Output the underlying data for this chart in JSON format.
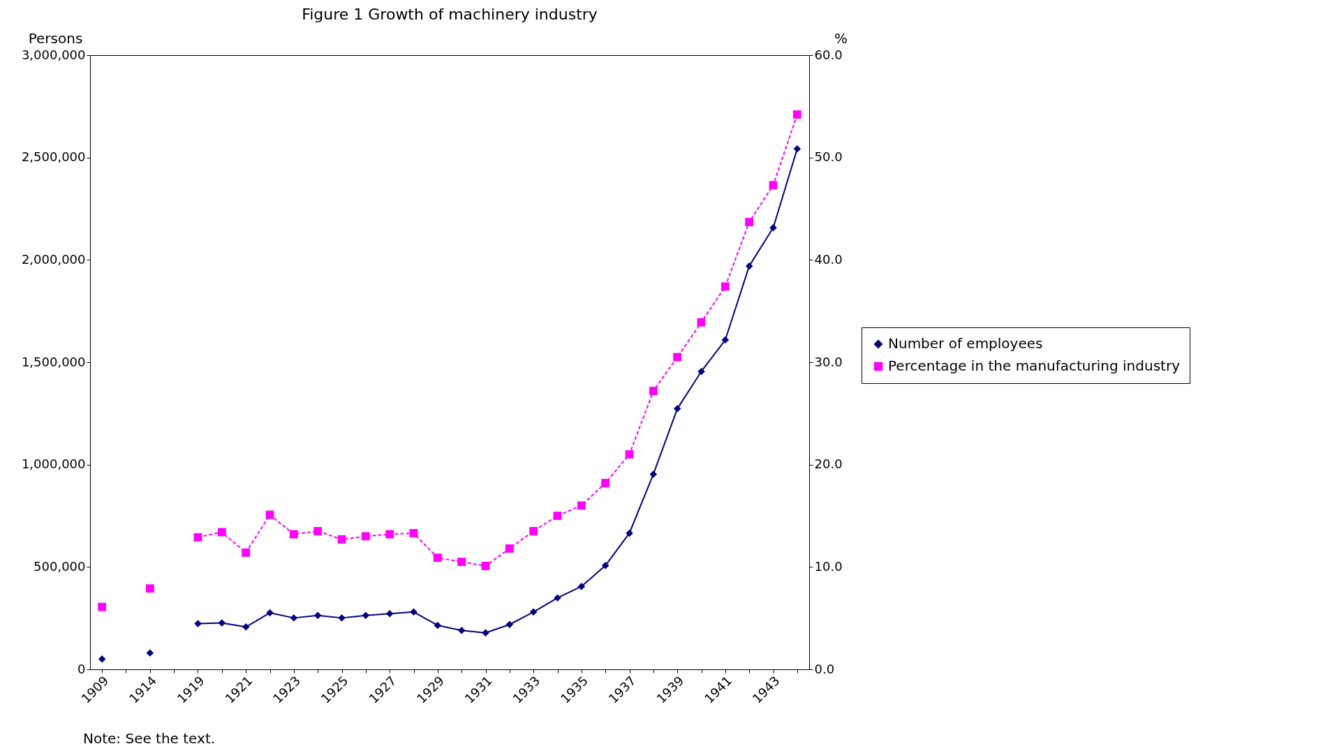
{
  "chart_data": {
    "type": "line",
    "title": "Figure 1 Growth of machinery industry",
    "ylabel": "Persons",
    "y2label": "%",
    "categories": [
      "1909",
      null,
      "1914",
      null,
      "1919",
      null,
      "1921",
      null,
      "1923",
      null,
      "1925",
      null,
      "1927",
      null,
      "1929",
      null,
      "1931",
      null,
      "1933",
      null,
      "1935",
      null,
      "1937",
      null,
      "1939",
      null,
      "1941",
      null,
      "1943",
      null
    ],
    "series": [
      {
        "name": "Number of employees",
        "color": "#000080",
        "marker": "diamond",
        "line_style": "solid",
        "values": [
          50000,
          null,
          80000,
          null,
          223000,
          227000,
          207000,
          276000,
          251000,
          263000,
          251000,
          263000,
          272000,
          280000,
          215000,
          190000,
          178000,
          219000,
          280000,
          349000,
          405000,
          507000,
          665000,
          953000,
          1273000,
          1455000,
          1609000,
          1970000,
          2157000,
          2542000
        ]
      },
      {
        "name": "Percentage in the manufacturing industry",
        "color": "#ff00ff",
        "marker": "square",
        "line_style": "dashed",
        "axis": "y2",
        "values": [
          6.1,
          null,
          7.9,
          null,
          12.9,
          13.4,
          11.4,
          15.1,
          13.2,
          13.5,
          12.7,
          13.0,
          13.2,
          13.3,
          10.9,
          10.5,
          10.1,
          11.8,
          13.5,
          15.0,
          16.0,
          18.2,
          21.0,
          27.2,
          30.5,
          33.9,
          37.4,
          43.7,
          47.3,
          54.2
        ]
      }
    ],
    "ylim": [
      0,
      3000000
    ],
    "yticks": [
      0,
      {
        "value": 500000,
        "label": "500,000"
      },
      {
        "value": 1000000,
        "label": "1,000,000"
      },
      {
        "value": 1500000,
        "label": "1,500,000"
      },
      {
        "value": 2000000,
        "label": "2,000,000"
      },
      {
        "value": 2500000,
        "label": "2,500,000"
      },
      {
        "value": 3000000,
        "label": "3,000,000"
      }
    ],
    "y2lim": [
      0,
      60
    ],
    "y2ticks": [
      {
        "value": 0,
        "label": "0.0"
      },
      {
        "value": 10,
        "label": "10.0"
      },
      {
        "value": 20,
        "label": "20.0"
      },
      {
        "value": 30,
        "label": "30.0"
      },
      {
        "value": 40,
        "label": "40.0"
      },
      {
        "value": 50,
        "label": "50.0"
      },
      {
        "value": 60,
        "label": "60.0"
      }
    ],
    "grid": false,
    "legend": "right",
    "annotations": [
      "Note: See the text."
    ]
  }
}
